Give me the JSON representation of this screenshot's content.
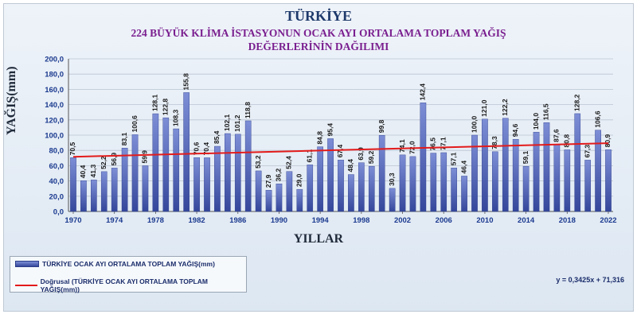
{
  "chart_data": {
    "type": "bar",
    "title": "TÜRKİYE",
    "subtitle": "224 BÜYÜK KLİMA İSTASYONUN OCAK AYI  ORTALAMA TOPLAM  YAĞIŞ DEĞERLERİNİN DAĞILIMI",
    "xlabel": "YILLAR",
    "ylabel": "YAĞIŞ(mm)",
    "ylim": [
      0,
      200
    ],
    "y_ticks": [
      "0,0",
      "20,0",
      "40,0",
      "60,0",
      "80,0",
      "100,0",
      "120,0",
      "140,0",
      "160,0",
      "180,0",
      "200,0"
    ],
    "x_ticks": [
      "1970",
      "1974",
      "1978",
      "1982",
      "1986",
      "1990",
      "1994",
      "1998",
      "2002",
      "2006",
      "2010",
      "2014",
      "2018",
      "2022"
    ],
    "categories": [
      1970,
      1971,
      1972,
      1973,
      1974,
      1975,
      1976,
      1977,
      1978,
      1979,
      1980,
      1981,
      1982,
      1983,
      1984,
      1985,
      1986,
      1987,
      1988,
      1989,
      1990,
      1991,
      1992,
      1993,
      1994,
      1995,
      1996,
      1997,
      1998,
      1999,
      2000,
      2001,
      2002,
      2003,
      2004,
      2005,
      2006,
      2007,
      2008,
      2009,
      2010,
      2011,
      2012,
      2013,
      2014,
      2015,
      2016,
      2017,
      2018,
      2019,
      2020,
      2021,
      2022
    ],
    "series": [
      {
        "name": "TÜRKİYE OCAK AYI ORTALAMA TOPLAM YAĞIŞ(mm)",
        "values": [
          70.5,
          40.4,
          41.3,
          52.2,
          56.9,
          83.1,
          100.6,
          59.9,
          128.1,
          122.8,
          108.3,
          155.8,
          70.6,
          70.4,
          85.4,
          102.1,
          101.2,
          118.8,
          53.2,
          27.9,
          36.2,
          52.4,
          29.0,
          61.1,
          84.8,
          95.4,
          67.4,
          48.4,
          63.9,
          59.2,
          99.8,
          30.3,
          74.1,
          72.0,
          142.4,
          76.5,
          77.1,
          57.1,
          46.4,
          100.0,
          121.0,
          78.3,
          122.2,
          94.6,
          59.1,
          104.0,
          116.5,
          87.6,
          80.8,
          128.2,
          67.3,
          106.6,
          80.9
        ],
        "labels": [
          "70,5",
          "40,4",
          "41,3",
          "52,2",
          "56,9",
          "83,1",
          "100,6",
          "59,9",
          "128,1",
          "122,8",
          "108,3",
          "155,8",
          "70,6",
          "70,4",
          "85,4",
          "102,1",
          "101,2",
          "118,8",
          "53,2",
          "27,9",
          "36,2",
          "52,4",
          "29,0",
          "61,1",
          "84,8",
          "95,4",
          "67,4",
          "48,4",
          "63,9",
          "59,2",
          "99,8",
          "30,3",
          "74,1",
          "72,0",
          "142,4",
          "76,5",
          "77,1",
          "57,1",
          "46,4",
          "100,0",
          "121,0",
          "78,3",
          "122,2",
          "94,6",
          "59,1",
          "104,0",
          "116,5",
          "87,6",
          "80,8",
          "128,2",
          "67,3",
          "106,6",
          "80,9"
        ]
      }
    ],
    "trendline": {
      "name": "Doğrusal (TÜRKİYE OCAK AYI ORTALAMA TOPLAM YAĞIŞ(mm))",
      "equation": "y = 0,3425x + 71,316",
      "slope": 0.3425,
      "intercept": 71.316
    },
    "grid": true,
    "legend_position": "bottom-left"
  },
  "colors": {
    "bar_top": "#7d8ed6",
    "bar_bottom": "#35479b",
    "trend": "#e31b1b",
    "axis_text": "#1b3a8f"
  }
}
